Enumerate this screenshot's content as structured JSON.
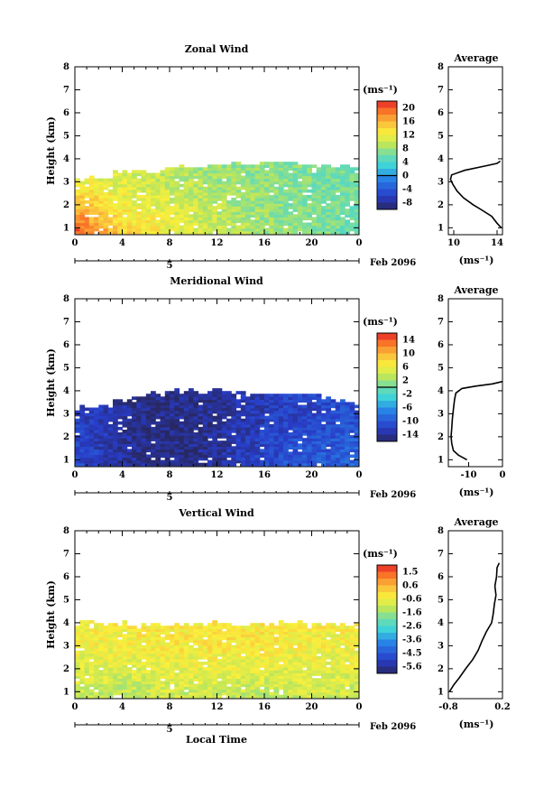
{
  "figure": {
    "xlabel_bottom": "Local Time",
    "date_label": "Feb 2096",
    "day_marker": "5"
  },
  "chart_data": [
    {
      "type": "heatmap",
      "title": "Zonal Wind",
      "xlabel": "",
      "ylabel": "Height (km)",
      "x_ticks": [
        "0",
        "4",
        "8",
        "12",
        "16",
        "20",
        "0"
      ],
      "y_ticks": [
        "1",
        "2",
        "3",
        "4",
        "5",
        "6",
        "7",
        "8"
      ],
      "xlim": [
        0,
        24
      ],
      "ylim": [
        0.7,
        8.0
      ],
      "colorbar": {
        "unit": "(ms⁻¹)",
        "ticks": [
          "20",
          "16",
          "12",
          "8",
          "4",
          "0",
          "-4",
          "-8"
        ],
        "range": [
          -10,
          22
        ],
        "zero_line": 0
      },
      "field": {
        "top_km_profile": [
          [
            0,
            3.0
          ],
          [
            2,
            3.1
          ],
          [
            4,
            3.4
          ],
          [
            8,
            3.5
          ],
          [
            12,
            3.7
          ],
          [
            16,
            3.8
          ],
          [
            20,
            3.7
          ],
          [
            23,
            3.6
          ]
        ],
        "low_level_values": [
          [
            0,
            20
          ],
          [
            4,
            14
          ],
          [
            8,
            12
          ],
          [
            12,
            10
          ],
          [
            16,
            8
          ],
          [
            20,
            7
          ],
          [
            23,
            6
          ]
        ],
        "upper_values": [
          [
            0,
            12
          ],
          [
            6,
            10
          ],
          [
            12,
            8
          ],
          [
            18,
            7
          ],
          [
            23,
            6
          ]
        ]
      },
      "profile": {
        "title": "Average",
        "xlabel": "(ms⁻¹)",
        "x_ticks": [
          "10",
          "14"
        ],
        "xlim": [
          9.5,
          14.5
        ],
        "height": [
          1.0,
          1.2,
          1.5,
          1.8,
          2.0,
          2.3,
          2.6,
          2.9,
          3.1,
          3.3,
          3.5,
          3.7,
          3.8,
          3.9
        ],
        "value": [
          14.4,
          14.0,
          13.5,
          12.5,
          11.8,
          10.9,
          10.3,
          9.9,
          9.7,
          9.8,
          11.0,
          13.0,
          14.0,
          14.3
        ]
      }
    },
    {
      "type": "heatmap",
      "title": "Meridional Wind",
      "xlabel": "",
      "ylabel": "Height (km)",
      "x_ticks": [
        "0",
        "4",
        "8",
        "12",
        "16",
        "20",
        "0"
      ],
      "y_ticks": [
        "1",
        "2",
        "3",
        "4",
        "5",
        "6",
        "7",
        "8"
      ],
      "xlim": [
        0,
        24
      ],
      "ylim": [
        0.7,
        8.0
      ],
      "colorbar": {
        "unit": "(ms⁻¹)",
        "ticks": [
          "14",
          "10",
          "6",
          "2",
          "-2",
          "-6",
          "-10",
          "-14"
        ],
        "range": [
          -16,
          16
        ],
        "zero_line": 0
      },
      "field": {
        "top_km_profile": [
          [
            0,
            3.2
          ],
          [
            2,
            3.3
          ],
          [
            4,
            3.6
          ],
          [
            8,
            3.9
          ],
          [
            12,
            3.9
          ],
          [
            16,
            3.8
          ],
          [
            20,
            3.8
          ],
          [
            23,
            3.4
          ]
        ],
        "low_level_values": [
          [
            0,
            -11
          ],
          [
            4,
            -14
          ],
          [
            8,
            -15
          ],
          [
            12,
            -14
          ],
          [
            16,
            -11
          ],
          [
            20,
            -10
          ],
          [
            23,
            -9
          ]
        ],
        "upper_values": [
          [
            0,
            -12
          ],
          [
            6,
            -15
          ],
          [
            12,
            -14
          ],
          [
            18,
            -12
          ],
          [
            23,
            -11
          ]
        ]
      },
      "profile": {
        "title": "Average",
        "xlabel": "(ms⁻¹)",
        "x_ticks": [
          "-10",
          "0"
        ],
        "xlim": [
          -16,
          0
        ],
        "height": [
          1.0,
          1.2,
          1.4,
          1.7,
          2.0,
          2.4,
          2.8,
          3.2,
          3.6,
          3.9,
          4.1,
          4.2,
          4.3,
          4.4
        ],
        "value": [
          -10.5,
          -13.0,
          -14.5,
          -15.0,
          -15.2,
          -15.0,
          -14.8,
          -14.5,
          -14.2,
          -13.8,
          -12.0,
          -8.0,
          -3.0,
          0.0
        ]
      }
    },
    {
      "type": "heatmap",
      "title": "Vertical Wind",
      "xlabel": "Local Time",
      "ylabel": "Height (km)",
      "x_ticks": [
        "0",
        "4",
        "8",
        "12",
        "16",
        "20",
        "0"
      ],
      "y_ticks": [
        "1",
        "2",
        "3",
        "4",
        "5",
        "6",
        "7",
        "8"
      ],
      "xlim": [
        0,
        24
      ],
      "ylim": [
        0.7,
        8.0
      ],
      "colorbar": {
        "unit": "(ms⁻¹)",
        "ticks": [
          "1.5",
          "0.6",
          "-0.6",
          "-1.6",
          "-2.6",
          "-3.6",
          "-4.5",
          "-5.6"
        ],
        "range": [
          -6.2,
          2.2
        ],
        "zero_line": null
      },
      "field": {
        "top_km_profile": [
          [
            0,
            3.9
          ],
          [
            4,
            3.9
          ],
          [
            8,
            3.9
          ],
          [
            12,
            3.9
          ],
          [
            16,
            3.9
          ],
          [
            20,
            3.9
          ],
          [
            23,
            3.9
          ]
        ],
        "low_level_values": [
          [
            0,
            -1.0
          ],
          [
            4,
            -1.2
          ],
          [
            8,
            -0.9
          ],
          [
            12,
            -1.0
          ],
          [
            16,
            -1.1
          ],
          [
            20,
            -0.9
          ],
          [
            23,
            -1.0
          ]
        ],
        "upper_values": [
          [
            0,
            -0.4
          ],
          [
            6,
            -0.3
          ],
          [
            12,
            -0.2
          ],
          [
            18,
            -0.3
          ],
          [
            23,
            -0.4
          ]
        ]
      },
      "profile": {
        "title": "Average",
        "xlabel": "(ms⁻¹)",
        "x_ticks": [
          "-0.8",
          "0.2"
        ],
        "xlim": [
          -0.8,
          0.2
        ],
        "height": [
          1.0,
          1.3,
          1.6,
          2.0,
          2.4,
          2.8,
          3.2,
          3.6,
          4.0,
          4.4,
          4.8,
          5.2,
          5.6,
          6.0,
          6.4,
          6.6
        ],
        "value": [
          -0.78,
          -0.7,
          -0.6,
          -0.48,
          -0.35,
          -0.25,
          -0.18,
          -0.1,
          0.0,
          0.03,
          0.05,
          0.08,
          0.06,
          0.09,
          0.1,
          0.14
        ]
      }
    }
  ]
}
